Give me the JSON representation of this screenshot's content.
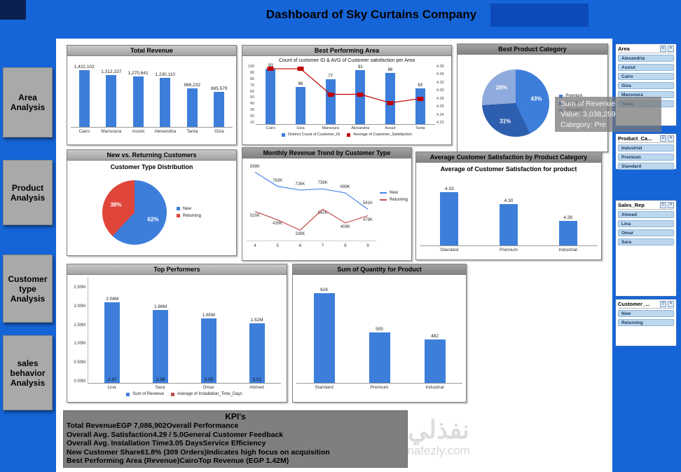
{
  "title": "Dashboard of Sky Curtains Company",
  "sidebar": {
    "items": [
      {
        "label": "Area Analysis"
      },
      {
        "label": "Product Analysis"
      },
      {
        "label": "Customer type Analysis"
      },
      {
        "label": "sales behavior Analysis"
      }
    ]
  },
  "tooltip": {
    "title": "Sum of Revenue",
    "value_line": "Value: 3,038,259",
    "category_line": "Category: Pre"
  },
  "watermark": {
    "arabic": "نفذلي",
    "latin": "nafezly.com"
  },
  "kpi": {
    "title": "KPI's",
    "rows": [
      {
        "label": "Total Revenue",
        "value": "EGP 7,086,902",
        "note": "Overall Performance"
      },
      {
        "label": "Overall Avg. Satisfaction",
        "value": "4.29 / 5.0",
        "note": "General Customer Feedback"
      },
      {
        "label": "Overall Avg. Installation Time",
        "value": "3.05 Days",
        "note": "Service Efficiency"
      },
      {
        "label": "New Customer Share",
        "value": "61.8% (309 Orders)",
        "note": "Indicates high focus on acquisition"
      },
      {
        "label": "Best Performing Area (Revenue)",
        "value": "Cairo",
        "note": "Top Revenue (EGP 1.42M)"
      }
    ]
  },
  "slicers": [
    {
      "title": "Area",
      "items": [
        "Alexandria",
        "Assiut",
        "Cairo",
        "Giza",
        "Mansoura",
        "Tanta"
      ]
    },
    {
      "title": "Product_Ca...",
      "items": [
        "Industrial",
        "Premium",
        "Standard"
      ]
    },
    {
      "title": "Sales_Rep",
      "items": [
        "Ahmed",
        "Lina",
        "Omar",
        "Sara"
      ]
    },
    {
      "title": "Customer_...",
      "items": [
        "New",
        "Returning"
      ]
    }
  ],
  "chart_data": [
    {
      "id": "total_revenue",
      "type": "bar",
      "title": "Total Revenue",
      "categories": [
        "Cairo",
        "Mansoura",
        "Assiut",
        "Alexandria",
        "Tanta",
        "Giza"
      ],
      "values": [
        1422102,
        1312237,
        1270641,
        1230110,
        966232,
        885579
      ],
      "labels": [
        "1,422,102",
        "1,312,237",
        "1,270,641",
        "1,230,110",
        "966,232",
        "885,579"
      ],
      "ylim": [
        0,
        1500000
      ],
      "bar_color": "#3d7edb"
    },
    {
      "id": "best_performing_area",
      "type": "combo",
      "title": "Best Performing Area",
      "subtitle": "Count of customer ID & AVG of Customer satisfaction per Area",
      "categories": [
        "Cairo",
        "Giza",
        "Mansoura",
        "Alexandria",
        "Assiut",
        "Tanta"
      ],
      "series": [
        {
          "name": "Distinct Count of Customer_ID",
          "type": "bar",
          "axis": "left",
          "values": [
            93,
            66,
            77,
            91,
            86,
            63
          ],
          "color": "#3d7edb"
        },
        {
          "name": "Average of Customer_Satisfaction",
          "type": "line",
          "axis": "right",
          "values": [
            4.35,
            4.35,
            4.29,
            4.29,
            4.27,
            4.28
          ],
          "color": "#c00000"
        }
      ],
      "left_axis": {
        "ticks": [
          "100",
          "90",
          "80",
          "70",
          "60",
          "50",
          "40",
          "30",
          "20",
          "10"
        ],
        "min": 10,
        "max": 100
      },
      "right_axis": {
        "ticks": [
          "4.36",
          "4.34",
          "4.32",
          "4.30",
          "4.28",
          "4.26",
          "4.24",
          "4.22"
        ],
        "min": 4.22,
        "max": 4.36
      }
    },
    {
      "id": "best_product_category",
      "type": "pie",
      "title": "Best Product Category",
      "slices": [
        {
          "label": "Premium",
          "pct": 43,
          "color": "#3d7edb"
        },
        {
          "label": "Industrial",
          "pct": 31,
          "color": "#2e5fae"
        },
        {
          "label": "Standard",
          "pct": 28,
          "color": "#8faadc"
        }
      ]
    },
    {
      "id": "customer_type",
      "type": "pie",
      "panel_title": "New vs. Returning Customers",
      "title": "Customer Type Distribution",
      "slices": [
        {
          "label": "New",
          "pct": 62,
          "color": "#3d7edb"
        },
        {
          "label": "Returning",
          "pct": 38,
          "color": "#e0453a"
        }
      ]
    },
    {
      "id": "monthly_trend",
      "type": "line",
      "title": "Monthly Revenue Trend by Customer Type",
      "x": [
        4,
        5,
        6,
        7,
        8,
        9
      ],
      "ylim_k": [
        300,
        950
      ],
      "series": [
        {
          "name": "New",
          "color": "#4a86e8",
          "values_k": [
            899,
            763,
            726,
            738,
            699,
            541
          ],
          "labels": [
            "899K",
            "763K",
            "726K",
            "738K",
            "699K",
            "541K"
          ]
        },
        {
          "name": "Returning",
          "color": "#c0504d",
          "values_k": [
            520,
            439,
            339,
            542,
            409,
            479
          ],
          "labels": [
            "520K",
            "439K",
            "339K",
            "542K",
            "409K",
            "479K"
          ]
        }
      ]
    },
    {
      "id": "avg_satisfaction",
      "type": "bar",
      "panel_title": "Average Customer Satisfaction by Product Category",
      "title": "Average of Customer Satisfaction for product",
      "categories": [
        "Standard",
        "Premium",
        "Industrial"
      ],
      "values": [
        4.33,
        4.3,
        4.26
      ],
      "labels": [
        "4.33",
        "4.30",
        "4.26"
      ],
      "ylim": [
        4.2,
        4.35
      ],
      "bar_color": "#3d7edb"
    },
    {
      "id": "top_performers",
      "type": "combo",
      "title": "Top Performers",
      "categories": [
        "Lina",
        "Sara",
        "Omar",
        "Ahmed"
      ],
      "y_ticks": [
        "2.50M",
        "2.00M",
        "1.50M",
        "1.00M",
        "0.50M",
        "0.00M"
      ],
      "ylim": [
        0,
        2.5
      ],
      "series": [
        {
          "name": "Sum of Revenue",
          "type": "bar",
          "values_m": [
            2.06,
            1.86,
            1.65,
            1.52
          ],
          "labels": [
            "2.06M",
            "1.86M",
            "1.65M",
            "1.52M"
          ],
          "color": "#3d7edb"
        },
        {
          "name": "Average of Installation_Time_Days",
          "type": "line",
          "values": [
            2.97,
            2.98,
            3.05,
            3.21
          ],
          "labels": [
            "2.97",
            "2.98",
            "3.05",
            "3.21"
          ],
          "color": "#c0504d"
        }
      ]
    },
    {
      "id": "quantity_product",
      "type": "bar",
      "title": "Sum of Quantity for Product",
      "categories": [
        "Standard",
        "Premium",
        "Industrial"
      ],
      "values": [
        624,
        505,
        482
      ],
      "labels": [
        "624",
        "505",
        "482"
      ],
      "ylim": [
        350,
        650
      ],
      "bar_color": "#3d7edb"
    }
  ]
}
